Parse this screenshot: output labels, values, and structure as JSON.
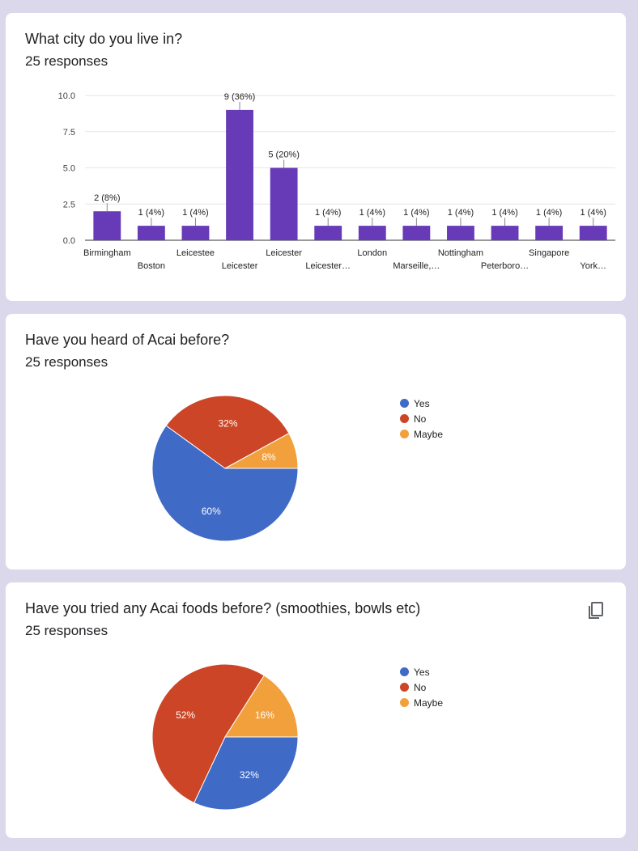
{
  "charts": [
    {
      "question": "What city do you live in?",
      "responses": "25 responses",
      "chart_data": {
        "type": "bar",
        "categories": [
          "Birmingham",
          "Boston",
          "Leicestee",
          "Leicester",
          "Leicester",
          "Leicester…",
          "London",
          "Marseille,…",
          "Nottingham",
          "Peterboro…",
          "Singapore",
          "York…"
        ],
        "values": [
          2,
          1,
          1,
          9,
          5,
          1,
          1,
          1,
          1,
          1,
          1,
          1
        ],
        "data_labels": [
          "2 (8%)",
          "1 (4%)",
          "1 (4%)",
          "9 (36%)",
          "5 (20%)",
          "1 (4%)",
          "1 (4%)",
          "1 (4%)",
          "1 (4%)",
          "1 (4%)",
          "1 (4%)",
          "1 (4%)"
        ],
        "yticks": [
          "0.0",
          "2.5",
          "5.0",
          "7.5",
          "10.0"
        ],
        "ylim": [
          0,
          10
        ],
        "grid": true,
        "color": "#673ab7"
      }
    },
    {
      "question": "Have you heard of Acai before?",
      "responses": "25 responses",
      "chart_data": {
        "type": "pie",
        "labels": [
          "Yes",
          "No",
          "Maybe"
        ],
        "values": [
          60,
          32,
          8
        ],
        "slice_labels": [
          "60%",
          "32%",
          "8%"
        ],
        "colors": [
          "#3f6ac6",
          "#cc4526",
          "#f2a03c"
        ],
        "legend": "right"
      }
    },
    {
      "question": "Have you tried any Acai foods before? (smoothies, bowls etc)",
      "responses": "25 responses",
      "chart_data": {
        "type": "pie",
        "labels": [
          "Yes",
          "No",
          "Maybe"
        ],
        "values": [
          32,
          52,
          16
        ],
        "slice_labels": [
          "32%",
          "52%",
          "16%"
        ],
        "colors": [
          "#3f6ac6",
          "#cc4526",
          "#f2a03c"
        ],
        "legend": "right"
      },
      "copy_icon": "copy-icon"
    }
  ]
}
